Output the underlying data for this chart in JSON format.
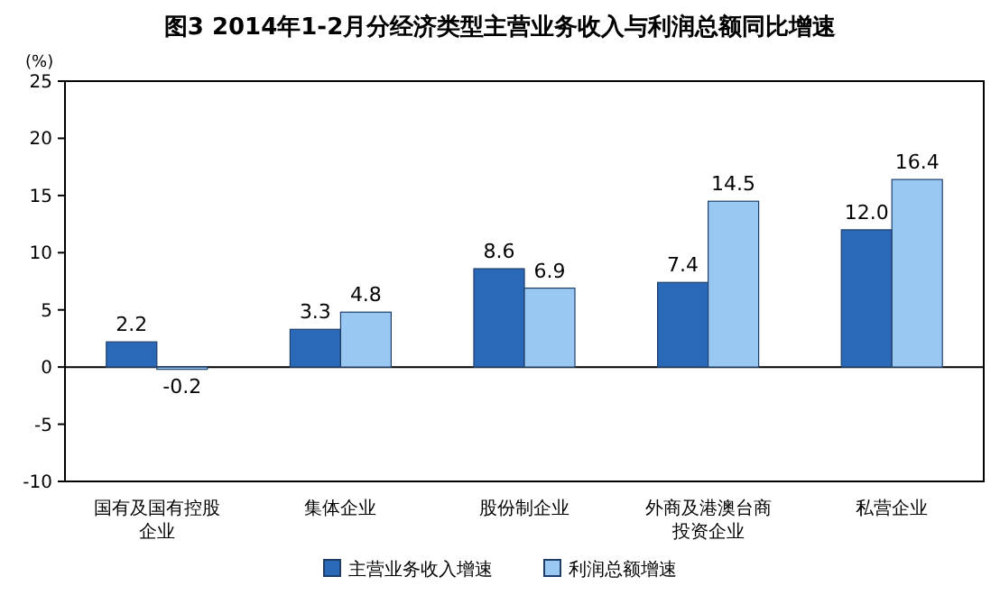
{
  "chart_data": {
    "type": "bar",
    "title": "图3  2014年1-2月分经济类型主营业务收入与利润总额同比增速",
    "ylabel": "(%)",
    "categories": [
      "国有及国有控股企业",
      "集体企业",
      "股份制企业",
      "外商及港澳台商投资企业",
      "私营企业"
    ],
    "series": [
      {
        "name": "主营业务收入增速",
        "color": "#2a68b8",
        "values": [
          2.2,
          3.3,
          8.6,
          7.4,
          12.0
        ],
        "value_labels": [
          "2.2",
          "3.3",
          "8.6",
          "7.4",
          "12.0"
        ]
      },
      {
        "name": "利润总额增速",
        "color": "#99c9f3",
        "values": [
          -0.2,
          4.8,
          6.9,
          14.5,
          16.4
        ],
        "value_labels": [
          "-0.2",
          "4.8",
          "6.9",
          "14.5",
          "16.4"
        ]
      }
    ],
    "ylim": [
      -10,
      25
    ],
    "yticks": [
      -10,
      -5,
      0,
      5,
      10,
      15,
      20,
      25
    ],
    "legend": "bottom"
  }
}
